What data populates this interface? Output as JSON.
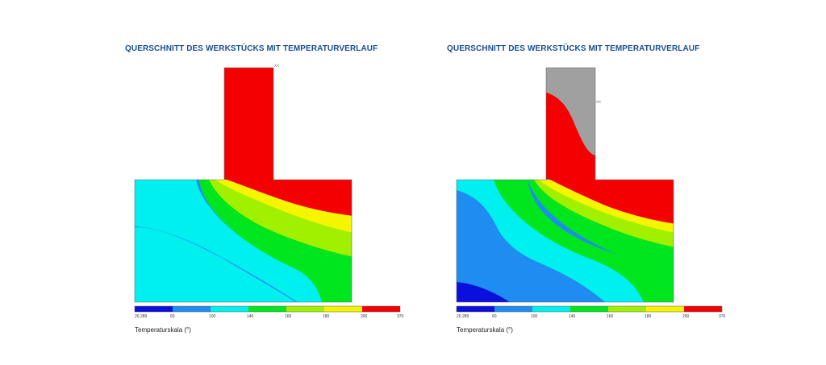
{
  "panels": [
    {
      "title": "QUERSCHNITT DES WERKSTÜCKS MIT TEMPERATURVERLAUF",
      "probe_label": "XX",
      "scale_label": "Temperaturskala (°)",
      "ticks": [
        "20.289",
        "60",
        "100",
        "140",
        "160",
        "180",
        "200",
        "370"
      ]
    },
    {
      "title": "QUERSCHNITT DES WERKSTÜCKS MIT TEMPERATURVERLAUF",
      "probe_label": "XX",
      "scale_label": "Temperaturskala (°)",
      "ticks": [
        "20.289",
        "60",
        "100",
        "140",
        "160",
        "180",
        "200",
        "370"
      ]
    }
  ],
  "colors": {
    "band_1": "#0a0fdc",
    "band_2": "#1e8cf0",
    "band_3": "#00f0f0",
    "band_4": "#00e61e",
    "band_5": "#a0f000",
    "band_6": "#f5f500",
    "band_7": "#f50000",
    "unfilled": "#a0a0a0",
    "title": "#1a4f96"
  }
}
